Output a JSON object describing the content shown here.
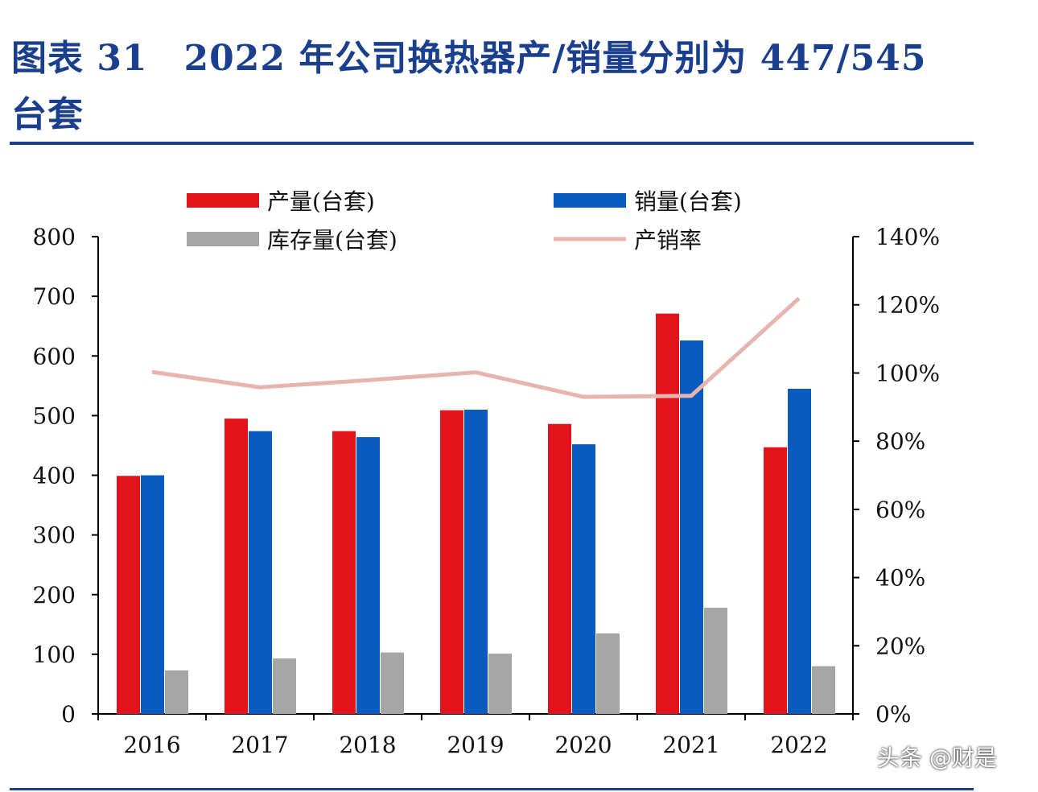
{
  "title": "图表 31　2022 年公司换热器产/销量分别为 447/545 台套",
  "watermark": "头条 @财是",
  "chart_data": {
    "type": "bar",
    "categories": [
      "2016",
      "2017",
      "2018",
      "2019",
      "2020",
      "2021",
      "2022"
    ],
    "series": [
      {
        "name": "产量(台套)",
        "type": "bar",
        "axis": "left",
        "color": "#e3121b",
        "values": [
          399,
          495,
          474,
          509,
          486,
          671,
          447
        ]
      },
      {
        "name": "销量(台套)",
        "type": "bar",
        "axis": "left",
        "color": "#0a5bbf",
        "values": [
          400,
          474,
          464,
          510,
          452,
          626,
          545
        ]
      },
      {
        "name": "库存量(台套)",
        "type": "bar",
        "axis": "left",
        "color": "#a6a6a6",
        "values": [
          73,
          93,
          103,
          101,
          135,
          178,
          80
        ]
      },
      {
        "name": "产销率",
        "type": "line",
        "axis": "right",
        "color": "#e8b4b0",
        "values": [
          100.3,
          95.8,
          97.9,
          100.2,
          93.0,
          93.3,
          121.9
        ]
      }
    ],
    "y_left": {
      "min": 0,
      "max": 800,
      "ticks": [
        "0",
        "100",
        "200",
        "300",
        "400",
        "500",
        "600",
        "700",
        "800"
      ]
    },
    "y_right": {
      "min": 0,
      "max": 140,
      "ticks": [
        "0%",
        "20%",
        "40%",
        "60%",
        "80%",
        "100%",
        "120%",
        "140%"
      ]
    },
    "legend_position": "top",
    "grid": false
  }
}
